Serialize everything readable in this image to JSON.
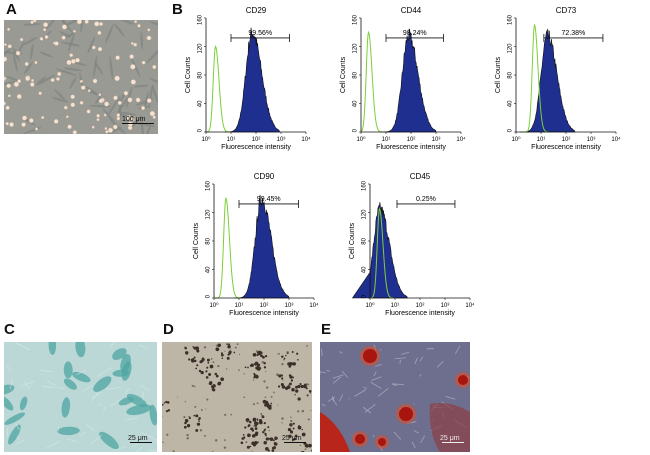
{
  "panels": {
    "A": {
      "label": "A",
      "scale": "100 μm"
    },
    "B": {
      "label": "B"
    },
    "C": {
      "label": "C",
      "scale": "25 μm"
    },
    "D": {
      "label": "D",
      "scale": "25 μm"
    },
    "E": {
      "label": "E",
      "scale": "25 μm"
    }
  },
  "colors": {
    "histogram_fill": "#1f2f8f",
    "control_line": "#7ccf3a",
    "panel_c_bg": "#bcd8d6",
    "panel_d_bg": "#bdb6a6",
    "panel_e_bg": "#6e6f8e"
  },
  "chart_data": [
    {
      "type": "area",
      "title": "CD29",
      "xlabel": "Fluorescence intensity",
      "ylabel": "Cell Counts",
      "x_scale": "log",
      "xlim": [
        1,
        10000
      ],
      "ylim": [
        0,
        160
      ],
      "xticks": [
        "10⁰",
        "10¹",
        "10²",
        "10³",
        "10⁴"
      ],
      "yticks": [
        "0",
        "40",
        "80",
        "120",
        "160"
      ],
      "gate": {
        "label": "99.56%",
        "from": 10,
        "to": 2200
      },
      "sample_peak": {
        "center": 70,
        "height": 150
      },
      "control_peak": {
        "center": 2.4,
        "height": 120
      }
    },
    {
      "type": "area",
      "title": "CD44",
      "xlabel": "Fluorescence intensity",
      "ylabel": "Cell Counts",
      "x_scale": "log",
      "xlim": [
        1,
        10000
      ],
      "ylim": [
        0,
        160
      ],
      "xticks": [
        "10⁰",
        "10¹",
        "10²",
        "10³",
        "10⁴"
      ],
      "yticks": [
        "0",
        "40",
        "80",
        "120",
        "160"
      ],
      "gate": {
        "label": "98.24%",
        "from": 10,
        "to": 2000
      },
      "sample_peak": {
        "center": 80,
        "height": 145
      },
      "control_peak": {
        "center": 2.0,
        "height": 140
      }
    },
    {
      "type": "area",
      "title": "CD73",
      "xlabel": "Fluorescence intensity",
      "ylabel": "Cell Counts",
      "x_scale": "log",
      "xlim": [
        1,
        10000
      ],
      "ylim": [
        0,
        160
      ],
      "xticks": [
        "10⁰",
        "10¹",
        "10²",
        "10³",
        "10⁴"
      ],
      "yticks": [
        "0",
        "40",
        "80",
        "120",
        "160"
      ],
      "gate": {
        "label": "72.38%",
        "from": 13,
        "to": 3000
      },
      "sample_peak": {
        "center": 18,
        "height": 145
      },
      "control_peak": {
        "center": 5.5,
        "height": 150
      }
    },
    {
      "type": "area",
      "title": "CD90",
      "xlabel": "Fluorescence intensity",
      "ylabel": "Cell Counts",
      "x_scale": "log",
      "xlim": [
        1,
        10000
      ],
      "ylim": [
        0,
        160
      ],
      "xticks": [
        "10⁰",
        "10¹",
        "10²",
        "10³",
        "10⁴"
      ],
      "yticks": [
        "0",
        "40",
        "80",
        "120",
        "160"
      ],
      "gate": {
        "label": "99.45%",
        "from": 10,
        "to": 2400
      },
      "sample_peak": {
        "center": 80,
        "height": 150
      },
      "control_peak": {
        "center": 3.0,
        "height": 140
      }
    },
    {
      "type": "area",
      "title": "CD45",
      "xlabel": "Fluorescence intensity",
      "ylabel": "Cell Counts",
      "x_scale": "log",
      "xlim": [
        1,
        10000
      ],
      "ylim": [
        0,
        160
      ],
      "xticks": [
        "10⁰",
        "10¹",
        "10²",
        "10³",
        "10⁴"
      ],
      "yticks": [
        "0",
        "40",
        "80",
        "120",
        "160"
      ],
      "gate": {
        "label": "0.25%",
        "from": 12,
        "to": 2500
      },
      "sample_peak": {
        "center": 2.5,
        "height": 135
      },
      "control_peak": {
        "center": 2.4,
        "height": 125
      }
    }
  ]
}
